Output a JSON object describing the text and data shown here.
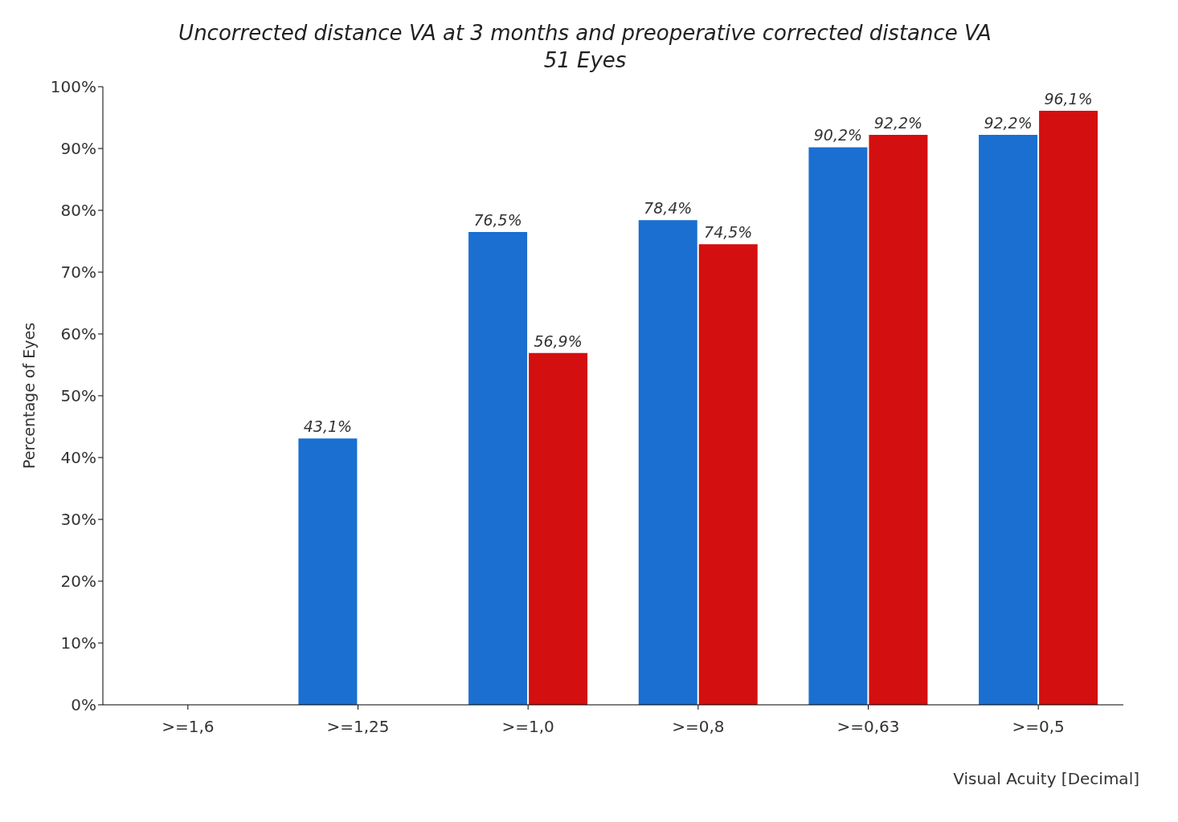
{
  "chart_data": {
    "type": "bar",
    "title": "Uncorrected distance VA at 3 months and preoperative corrected distance VA",
    "subtitle": "51 Eyes",
    "xlabel": "Visual Acuity [Decimal]",
    "ylabel": "Percentage of Eyes",
    "categories": [
      ">=1,6",
      ">=1,25",
      ">=1,0",
      ">=0,8",
      ">=0,63",
      ">=0,5"
    ],
    "series": [
      {
        "color": "#1a6fd0",
        "values": [
          null,
          43.1,
          76.5,
          78.4,
          90.2,
          92.2
        ],
        "value_labels": [
          null,
          "43,1%",
          "76,5%",
          "78,4%",
          "90,2%",
          "92,2%"
        ]
      },
      {
        "color": "#d40f0f",
        "values": [
          null,
          null,
          56.9,
          74.5,
          92.2,
          96.1
        ],
        "value_labels": [
          null,
          null,
          "56,9%",
          "74,5%",
          "92,2%",
          "96,1%"
        ]
      }
    ],
    "ylim": [
      0,
      100
    ],
    "yticks": [
      {
        "value": 0,
        "label": "0%"
      },
      {
        "value": 10,
        "label": "10%"
      },
      {
        "value": 20,
        "label": "20%"
      },
      {
        "value": 30,
        "label": "30%"
      },
      {
        "value": 40,
        "label": "40%"
      },
      {
        "value": 50,
        "label": "50%"
      },
      {
        "value": 60,
        "label": "60%"
      },
      {
        "value": 70,
        "label": "70%"
      },
      {
        "value": 80,
        "label": "80%"
      },
      {
        "value": 90,
        "label": "90%"
      },
      {
        "value": 100,
        "label": "100%"
      }
    ],
    "grid": false,
    "legend": false
  }
}
